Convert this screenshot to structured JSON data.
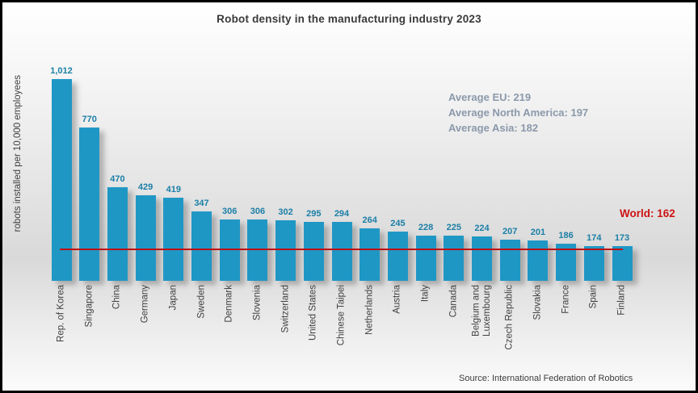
{
  "chart_data": {
    "type": "bar",
    "title": "Robot density in the manufacturing industry 2023",
    "ylabel": "robots installed per 10,000 employees",
    "categories": [
      "Rep. of Korea",
      "Singapore",
      "China",
      "Germany",
      "Japan",
      "Sweden",
      "Denmark",
      "Slovenia",
      "Switzerland",
      "United States",
      "Chinese Taipei",
      "Netherlands",
      "Austria",
      "Italy",
      "Canada",
      "Belgium and\nLuxembourg",
      "Czech Republic",
      "Slovakia",
      "France",
      "Spain",
      "Finland"
    ],
    "values": [
      1012,
      770,
      470,
      429,
      419,
      347,
      306,
      306,
      302,
      295,
      294,
      264,
      245,
      228,
      225,
      224,
      207,
      201,
      186,
      174,
      173
    ],
    "value_labels": [
      "1,012",
      "770",
      "470",
      "429",
      "419",
      "347",
      "306",
      "306",
      "302",
      "295",
      "294",
      "264",
      "245",
      "228",
      "225",
      "224",
      "207",
      "201",
      "186",
      "174",
      "173"
    ],
    "annotations": [
      "Average EU: 219",
      "Average North America: 197",
      "Average Asia: 182"
    ],
    "reference_line": {
      "label": "World: 162",
      "value": 162
    },
    "source": "Source: International Federation of Robotics",
    "ylim": [
      0,
      1100
    ],
    "grid": false,
    "legend": false,
    "y_axis_ticks_visible": false,
    "colors": {
      "bar": "#1f97c5",
      "value_label": "#1b7fa6",
      "annotation": "#8b99ab",
      "reference_line": "#c00d10",
      "reference_label": "#cc1414",
      "title": "#3a3a3a"
    }
  }
}
